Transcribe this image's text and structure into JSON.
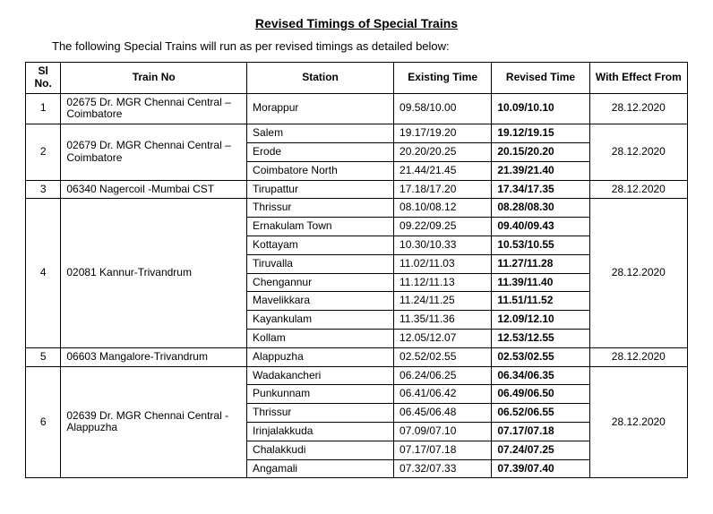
{
  "title": "Revised Timings of Special Trains",
  "subtitle": "The following Special Trains will run as per revised timings as detailed below:",
  "columns": [
    "Sl No.",
    "Train No",
    "Station",
    "Existing Time",
    "Revised Time",
    "With Effect From"
  ],
  "groups": [
    {
      "sl": "1",
      "train": "02675 Dr. MGR Chennai Central – Coimbatore",
      "wef": "28.12.2020",
      "rows": [
        {
          "station": "Morappur",
          "existing": "09.58/10.00",
          "revised": "10.09/10.10"
        }
      ]
    },
    {
      "sl": "2",
      "train": "02679 Dr. MGR Chennai Central – Coimbatore",
      "wef": "28.12.2020",
      "rows": [
        {
          "station": "Salem",
          "existing": "19.17/19.20",
          "revised": "19.12/19.15"
        },
        {
          "station": "Erode",
          "existing": "20.20/20.25",
          "revised": "20.15/20.20"
        },
        {
          "station": "Coimbatore North",
          "existing": "21.44/21.45",
          "revised": "21.39/21.40"
        }
      ]
    },
    {
      "sl": "3",
      "train": "06340  Nagercoil -Mumbai CST",
      "wef": "28.12.2020",
      "rows": [
        {
          "station": "Tirupattur",
          "existing": "17.18/17.20",
          "revised": "17.34/17.35"
        }
      ]
    },
    {
      "sl": "4",
      "train": "02081 Kannur-Trivandrum",
      "wef": "28.12.2020",
      "rows": [
        {
          "station": "Thrissur",
          "existing": "08.10/08.12",
          "revised": "08.28/08.30"
        },
        {
          "station": "Ernakulam Town",
          "existing": "09.22/09.25",
          "revised": "09.40/09.43"
        },
        {
          "station": "Kottayam",
          "existing": "10.30/10.33",
          "revised": "10.53/10.55"
        },
        {
          "station": "Tiruvalla",
          "existing": "11.02/11.03",
          "revised": "11.27/11.28"
        },
        {
          "station": "Chengannur",
          "existing": "11.12/11.13",
          "revised": "11.39/11.40"
        },
        {
          "station": "Mavelikkara",
          "existing": "11.24/11.25",
          "revised": "11.51/11.52"
        },
        {
          "station": "Kayankulam",
          "existing": "11.35/11.36",
          "revised": "12.09/12.10"
        },
        {
          "station": "Kollam",
          "existing": "12.05/12.07",
          "revised": "12.53/12.55"
        }
      ]
    },
    {
      "sl": "5",
      "train": "06603 Mangalore-Trivandrum",
      "wef": "28.12.2020",
      "rows": [
        {
          "station": "Alappuzha",
          "existing": "02.52/02.55",
          "revised": "02.53/02.55"
        }
      ]
    },
    {
      "sl": "6",
      "train": "02639 Dr. MGR Chennai Central - Alappuzha",
      "wef": "28.12.2020",
      "rows": [
        {
          "station": "Wadakancheri",
          "existing": "06.24/06.25",
          "revised": "06.34/06.35"
        },
        {
          "station": "Punkunnam",
          "existing": "06.41/06.42",
          "revised": "06.49/06.50"
        },
        {
          "station": "Thrissur",
          "existing": "06.45/06.48",
          "revised": "06.52/06.55"
        },
        {
          "station": "Irinjalakkuda",
          "existing": "07.09/07.10",
          "revised": "07.17/07.18"
        },
        {
          "station": "Chalakkudi",
          "existing": "07.17/07.18",
          "revised": "07.24/07.25"
        },
        {
          "station": "Angamali",
          "existing": "07.32/07.33",
          "revised": "07.39/07.40"
        }
      ]
    }
  ]
}
